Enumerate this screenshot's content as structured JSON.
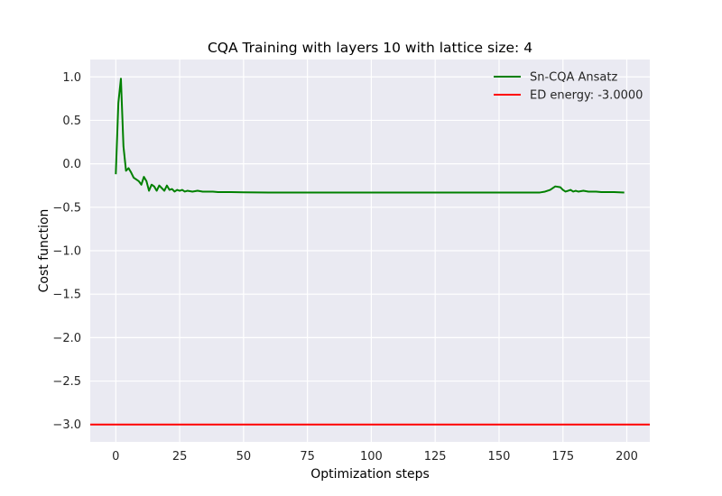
{
  "chart_data": {
    "type": "line",
    "title": "CQA Training with layers 10 with lattice size: 4",
    "xlabel": "Optimization steps",
    "ylabel": "Cost function",
    "xlim": [
      -10,
      209
    ],
    "ylim": [
      -3.2,
      1.2
    ],
    "xticks": [
      0,
      25,
      50,
      75,
      100,
      125,
      150,
      175,
      200
    ],
    "yticks": [
      1.0,
      0.5,
      0.0,
      -0.5,
      -1.0,
      -1.5,
      -2.0,
      -2.5,
      -3.0
    ],
    "xtick_labels": [
      "0",
      "25",
      "50",
      "75",
      "100",
      "125",
      "150",
      "175",
      "200"
    ],
    "ytick_labels": [
      "1.0",
      "0.5",
      "0.0",
      "−0.5",
      "−1.0",
      "−1.5",
      "−2.0",
      "−2.5",
      "−3.0"
    ],
    "grid": true,
    "legend_position": "top-right",
    "background_color": "#eaeaf2",
    "series": [
      {
        "name": "Sn-CQA Ansatz",
        "color": "#008000",
        "points": [
          [
            0,
            -0.12
          ],
          [
            1,
            0.7
          ],
          [
            2,
            0.98
          ],
          [
            3,
            0.2
          ],
          [
            4,
            -0.08
          ],
          [
            5,
            -0.05
          ],
          [
            6,
            -0.1
          ],
          [
            7,
            -0.16
          ],
          [
            8,
            -0.18
          ],
          [
            9,
            -0.2
          ],
          [
            10,
            -0.24
          ],
          [
            11,
            -0.15
          ],
          [
            12,
            -0.2
          ],
          [
            13,
            -0.31
          ],
          [
            14,
            -0.24
          ],
          [
            15,
            -0.26
          ],
          [
            16,
            -0.31
          ],
          [
            17,
            -0.25
          ],
          [
            18,
            -0.28
          ],
          [
            19,
            -0.31
          ],
          [
            20,
            -0.25
          ],
          [
            21,
            -0.3
          ],
          [
            22,
            -0.29
          ],
          [
            23,
            -0.32
          ],
          [
            24,
            -0.3
          ],
          [
            25,
            -0.31
          ],
          [
            26,
            -0.3
          ],
          [
            27,
            -0.32
          ],
          [
            28,
            -0.31
          ],
          [
            30,
            -0.32
          ],
          [
            32,
            -0.31
          ],
          [
            34,
            -0.32
          ],
          [
            36,
            -0.32
          ],
          [
            38,
            -0.32
          ],
          [
            40,
            -0.325
          ],
          [
            45,
            -0.325
          ],
          [
            50,
            -0.328
          ],
          [
            60,
            -0.33
          ],
          [
            80,
            -0.33
          ],
          [
            100,
            -0.33
          ],
          [
            120,
            -0.33
          ],
          [
            140,
            -0.33
          ],
          [
            160,
            -0.33
          ],
          [
            166,
            -0.33
          ],
          [
            168,
            -0.32
          ],
          [
            170,
            -0.3
          ],
          [
            172,
            -0.26
          ],
          [
            174,
            -0.27
          ],
          [
            175,
            -0.3
          ],
          [
            176,
            -0.32
          ],
          [
            177,
            -0.31
          ],
          [
            178,
            -0.3
          ],
          [
            179,
            -0.32
          ],
          [
            180,
            -0.31
          ],
          [
            181,
            -0.32
          ],
          [
            183,
            -0.31
          ],
          [
            185,
            -0.32
          ],
          [
            188,
            -0.32
          ],
          [
            190,
            -0.325
          ],
          [
            195,
            -0.325
          ],
          [
            199,
            -0.33
          ]
        ]
      },
      {
        "name": "ED energy: -3.0000",
        "color": "#ff0000",
        "type": "hline",
        "y": -3.0
      }
    ]
  }
}
